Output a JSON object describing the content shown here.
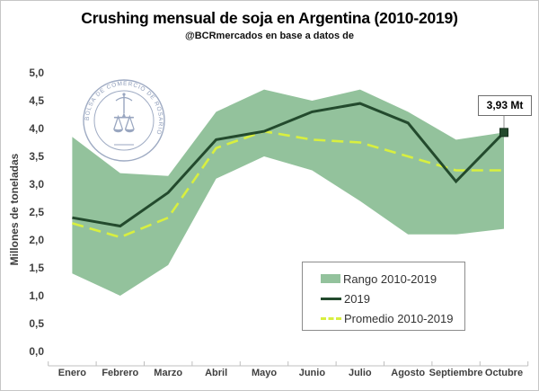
{
  "header": {
    "title": "Crushing mensual de soja en Argentina (2010-2019)",
    "subtitle": "@BCRmercados en base a datos de"
  },
  "watermark": {
    "seal_text": "BOLSA DE COMERCIO DE ROSARIO",
    "color": "#6e81a6"
  },
  "chart_data": {
    "type": "area",
    "subtype": "range-band-with-lines",
    "title": "Crushing mensual de soja en Argentina (2010-2019)",
    "xlabel": "",
    "ylabel": "Millones de toneladas",
    "ylim": [
      0,
      5
    ],
    "ytick_step": 0.5,
    "yticks": [
      "0,0",
      "0,5",
      "1,0",
      "1,5",
      "2,0",
      "2,5",
      "3,0",
      "3,5",
      "4,0",
      "4,5",
      "5,0"
    ],
    "grid": false,
    "legend_position": "inside-bottom-right",
    "categories": [
      "Enero",
      "Febrero",
      "Marzo",
      "Abril",
      "Mayo",
      "Junio",
      "Julio",
      "Agosto",
      "Septiembre",
      "Octubre"
    ],
    "series": [
      {
        "name": "Rango 2010-2019",
        "type": "band",
        "color": "#93c29c",
        "min": [
          1.4,
          1.0,
          1.55,
          3.1,
          3.5,
          3.25,
          2.7,
          2.1,
          2.1,
          2.2
        ],
        "max": [
          3.85,
          3.2,
          3.15,
          4.3,
          4.7,
          4.5,
          4.7,
          4.3,
          3.8,
          3.93
        ]
      },
      {
        "name": "2019",
        "type": "line",
        "color": "#234a2d",
        "values": [
          2.4,
          2.25,
          2.85,
          3.8,
          3.95,
          4.3,
          4.45,
          4.1,
          3.05,
          3.93
        ]
      },
      {
        "name": "Promedio 2010-2019",
        "type": "dashed-line",
        "color": "#d8ef3f",
        "values": [
          2.3,
          2.05,
          2.4,
          3.65,
          3.95,
          3.8,
          3.75,
          3.5,
          3.25,
          3.25
        ]
      }
    ],
    "annotation": {
      "label": "3,93 Mt",
      "month": "Octubre",
      "value": 3.93,
      "series": "2019"
    },
    "axis_color": "#bfbfbf"
  }
}
